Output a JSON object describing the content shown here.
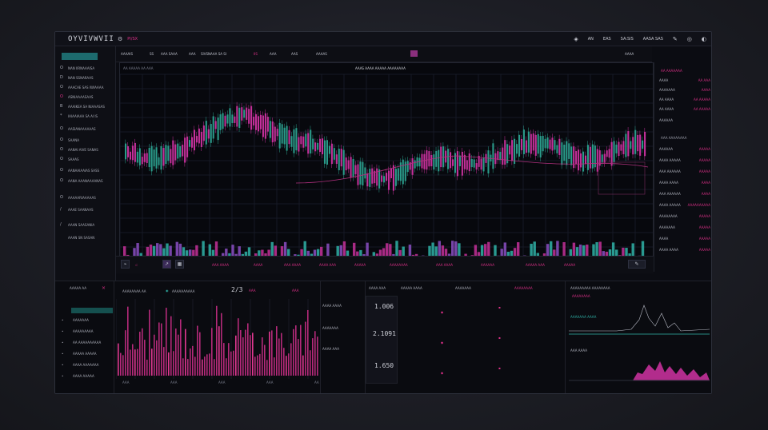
{
  "app": {
    "brand": "OYVIVWVII",
    "brand_tag": "PI/SX"
  },
  "topbar": {
    "items": [
      "AN",
      "EAS",
      "SA:SIS",
      "AASA SAS"
    ]
  },
  "sidebar": {
    "active_label": "",
    "items": [
      {
        "icon": "O",
        "label": "NAN IIRNAAAISA"
      },
      {
        "icon": "D",
        "label": "NAN SSNARAAS"
      },
      {
        "icon": "O",
        "label": "AAACAE SAS IWIAAAA"
      },
      {
        "icon": "O",
        "label": "ASNIAAAASAAS"
      },
      {
        "icon": "B",
        "label": "AAAIKEA SA NIAAASAS"
      },
      {
        "icon": "*",
        "label": "IAIAAIAAA SA AI IS"
      },
      {
        "icon": "O",
        "label": "AASIANAAAAAAS"
      },
      {
        "icon": "O",
        "label": "SAANA"
      },
      {
        "icon": "O",
        "label": "AANAI AIVE SANAS"
      },
      {
        "icon": "O",
        "label": "SAAAS"
      },
      {
        "icon": "O",
        "label": "AANAAIAAIAS  SASS"
      },
      {
        "icon": "O",
        "label": "AANA AAANAAAANAS"
      },
      {
        "icon": "O",
        "label": "AAAAARIAAAAAS"
      },
      {
        "icon": "/",
        "label": "AAAE SAANAAS"
      },
      {
        "icon": "/",
        "label": "AAAN SAASANIA"
      },
      {
        "icon": "",
        "label": "AAAN SN SASAN"
      }
    ]
  },
  "toolbar": {
    "items": [
      "AAAAIS",
      "SS",
      "AAA SAAA",
      "AAA",
      "SIVSNAAA SA SI",
      "IIS",
      "AAA",
      "AAS",
      "AAAAS"
    ],
    "right": [
      "AAAA",
      "AAA AAA"
    ]
  },
  "chart": {
    "header_left": "AA AAAAA AA AAA",
    "header_center": "AAAS AAAA AAAAA AAAAAAAA",
    "x_ticks": [
      "AA",
      "AA",
      "AA",
      "AA",
      "AA",
      "AA",
      "AA",
      "AA"
    ],
    "bottom_labels": [
      "AAA AAAA",
      "AAAA",
      "AAA AAAA",
      "AAAA AAA",
      "AAAAA",
      "AAAAAAAA",
      "AAA AAAA",
      "AAAAAA",
      "AAAAA AAA",
      "AAAAA"
    ]
  },
  "orderbook": {
    "title": "AA AAAAAAA",
    "rows": [
      {
        "l": "AAAA",
        "r": "AA AAA"
      },
      {
        "l": "AAAAAAA",
        "r": "AAAA"
      },
      {
        "l": "AA AAAA",
        "r": "AA AAAAA"
      },
      {
        "l": "AA AAAA",
        "r": "AA AAAAA"
      },
      {
        "l": "AAAAAA",
        "r": ""
      }
    ],
    "section": "AAA AAAAAAAA",
    "rows2": [
      {
        "l": "AAAAAA",
        "r": "AAAAA"
      },
      {
        "l": "AAAA AAAAA",
        "r": "AAAAA"
      },
      {
        "l": "AAA AAAAAA",
        "r": "AAAAA"
      },
      {
        "l": "AAAA AAAA",
        "r": "AAAA"
      },
      {
        "l": "AAA AAAAAA",
        "r": "AAAA"
      },
      {
        "l": "AAAA AAAAA",
        "r": "AAAAAAAAAA"
      },
      {
        "l": "AAAAAAAA",
        "r": "AAAAA"
      },
      {
        "l": "AAAAAAA",
        "r": "AAAAA"
      },
      {
        "l": "AAAA",
        "r": "AAAAA"
      },
      {
        "l": "AAAA AAAA",
        "r": "AAAAA"
      }
    ]
  },
  "bottom": {
    "p1": {
      "title": "AAAAA AA",
      "rows": [
        "AAAAAAA",
        "AAAAAAAAA",
        "AA AAAAAAAAAA",
        "AAAAA AAAAA",
        "AAAA AAAAAAA",
        "AAAA AAAAA"
      ]
    },
    "p2": {
      "header": [
        "AAAAAAAA AA",
        "AAAAAAAAAA",
        "2/3",
        "AAA",
        "AAA"
      ],
      "ticks": [
        "AAA",
        "AAA",
        "AAA",
        "AAA",
        "AAA"
      ]
    },
    "p3": {
      "labels": [
        "AAAA AAAA",
        "AAAAAAA",
        "AAAA AAA"
      ],
      "values": [
        "1.006",
        "2.1091",
        "1.650"
      ]
    },
    "p4": {
      "header": [
        "AAAA AAA",
        "AAAAA AAAA",
        "AAAAAAA",
        "AAAAAAAA"
      ]
    },
    "p5": {
      "title": "AAAAAAAAA AAAAAAAA",
      "labels": [
        "AAAAAAAA",
        "AAAAAAA AAAA",
        "AAA AAAA"
      ]
    }
  },
  "colors": {
    "pink": "#e0308a",
    "teal": "#2fb3a8",
    "purple": "#8b4fc4"
  }
}
